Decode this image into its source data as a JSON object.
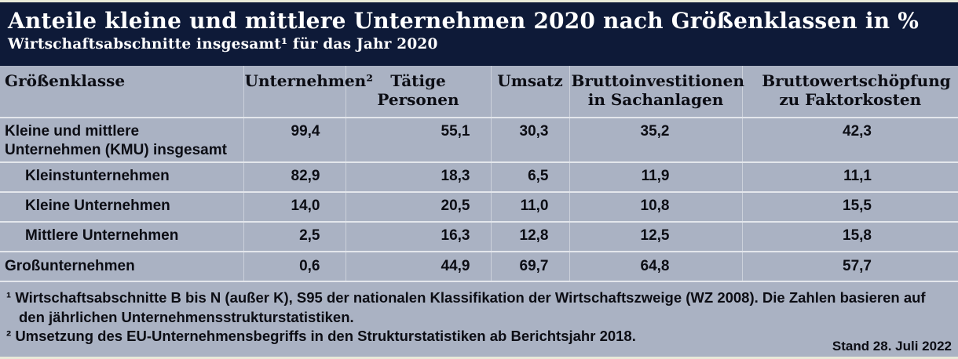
{
  "header": {
    "title": "Anteile kleine und mittlere Unternehmen 2020 nach Größenklassen in %",
    "subtitle": "Wirtschaftsabschnitte insgesamt¹ für das Jahr 2020"
  },
  "table": {
    "columns": [
      {
        "label": "Größenklasse"
      },
      {
        "label": "Unternehmen²"
      },
      {
        "label": "Tätige Personen"
      },
      {
        "label": "Umsatz"
      },
      {
        "label": "Bruttoinvestitionen in Sachanlagen"
      },
      {
        "label": "Bruttowertschöpfung zu Faktorkosten"
      }
    ],
    "rows": [
      {
        "label": "Kleine und mittlere Unternehmen (KMU) insgesamt",
        "indent": false,
        "values": [
          "99,4",
          "55,1",
          "30,3",
          "35,2",
          "42,3"
        ]
      },
      {
        "label": "Kleinstunternehmen",
        "indent": true,
        "values": [
          "82,9",
          "18,3",
          "6,5",
          "11,9",
          "11,1"
        ]
      },
      {
        "label": "Kleine Unternehmen",
        "indent": true,
        "values": [
          "14,0",
          "20,5",
          "11,0",
          "10,8",
          "15,5"
        ]
      },
      {
        "label": "Mittlere Unternehmen",
        "indent": true,
        "values": [
          "2,5",
          "16,3",
          "12,8",
          "12,5",
          "15,8"
        ]
      },
      {
        "label": "Großunternehmen",
        "indent": false,
        "values": [
          "0,6",
          "44,9",
          "69,7",
          "64,8",
          "57,7"
        ]
      }
    ]
  },
  "footnotes": [
    {
      "marker": "¹",
      "text": "Wirtschaftsabschnitte B bis N (außer K), S95 der nationalen Klassifikation der Wirtschaftszweige (WZ 2008). Die Zahlen basieren auf den jährlichen Unternehmensstrukturstatistiken."
    },
    {
      "marker": "²",
      "text": "Umsetzung des EU-Unternehmensbegriffs in den Strukturstatistiken ab Berichtsjahr 2018."
    }
  ],
  "stand": "Stand 28. Juli 2022",
  "colors": {
    "header_bg": "#0e1a38",
    "body_bg": "#aab2c3",
    "row_separator": "#e4e7ec",
    "edge_line": "#e8ead9",
    "text": "#0c0d14",
    "header_text": "#ffffff"
  },
  "chart_data": {
    "type": "table",
    "title": "Anteile kleine und mittlere Unternehmen 2020 nach Größenklassen in %",
    "subtitle": "Wirtschaftsabschnitte insgesamt¹ für das Jahr 2020",
    "unit": "%",
    "columns": [
      "Größenklasse",
      "Unternehmen²",
      "Tätige Personen",
      "Umsatz",
      "Bruttoinvestitionen in Sachanlagen",
      "Bruttowertschöpfung zu Faktorkosten"
    ],
    "rows": [
      {
        "category": "Kleine und mittlere Unternehmen (KMU) insgesamt",
        "values": [
          99.4,
          55.1,
          30.3,
          35.2,
          42.3
        ]
      },
      {
        "category": "Kleinstunternehmen",
        "values": [
          82.9,
          18.3,
          6.5,
          11.9,
          11.1
        ]
      },
      {
        "category": "Kleine Unternehmen",
        "values": [
          14.0,
          20.5,
          11.0,
          10.8,
          15.5
        ]
      },
      {
        "category": "Mittlere Unternehmen",
        "values": [
          2.5,
          16.3,
          12.8,
          12.5,
          15.8
        ]
      },
      {
        "category": "Großunternehmen",
        "values": [
          0.6,
          44.9,
          69.7,
          64.8,
          57.7
        ]
      }
    ],
    "footnotes": [
      "¹ Wirtschaftsabschnitte B bis N (außer K), S95 der nationalen Klassifikation der Wirtschaftszweige (WZ 2008). Die Zahlen basieren auf den jährlichen Unternehmensstrukturstatistiken.",
      "² Umsetzung des EU-Unternehmensbegriffs in den Strukturstatistiken ab Berichtsjahr 2018."
    ],
    "as_of": "Stand 28. Juli 2022"
  }
}
